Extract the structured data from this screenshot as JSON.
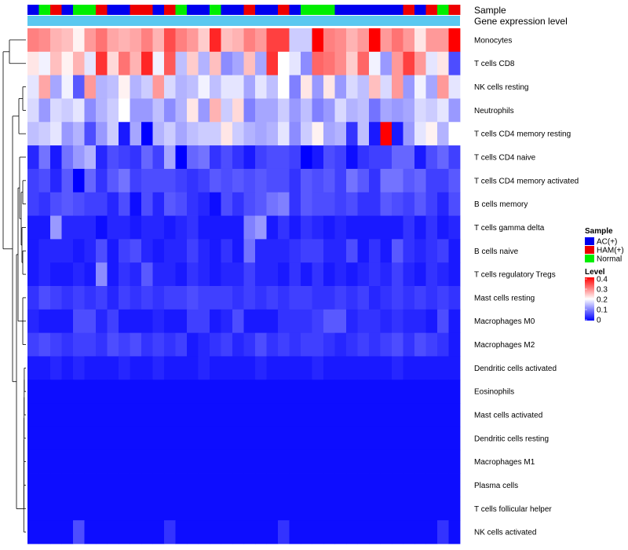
{
  "chart_data": {
    "type": "heatmap",
    "annotation_labels": {
      "sample": "Sample",
      "expression": "Gene expression level"
    },
    "row_labels": [
      "Monocytes",
      "T cells CD8",
      "NK cells resting",
      "Neutrophils",
      "T cells CD4 memory resting",
      "T cells CD4 naive",
      "T cells CD4 memory activated",
      "B cells memory",
      "T cells gamma delta",
      "B cells naive",
      "T cells regulatory  Tregs",
      "Mast cells resting",
      "Macrophages M0",
      "Macrophages M2",
      "Dendritic cells activated",
      "Eosinophils",
      "Mast cells activated",
      "Dendritic cells resting",
      "Macrophages M1",
      "Plasma cells",
      "T cells follicular helper",
      "NK cells activated"
    ],
    "sample_groups": [
      "AC(+)",
      "HAM(+)",
      "Normal"
    ],
    "sample_colors": {
      "AC(+)": "#0000ee",
      "HAM(+)": "#ee0000",
      "Normal": "#00ee00"
    },
    "column_samples": [
      "AC(+)",
      "Normal",
      "HAM(+)",
      "AC(+)",
      "Normal",
      "Normal",
      "HAM(+)",
      "AC(+)",
      "AC(+)",
      "HAM(+)",
      "HAM(+)",
      "AC(+)",
      "HAM(+)",
      "Normal",
      "AC(+)",
      "AC(+)",
      "Normal",
      "AC(+)",
      "AC(+)",
      "HAM(+)",
      "AC(+)",
      "AC(+)",
      "HAM(+)",
      "AC(+)",
      "Normal",
      "Normal",
      "Normal",
      "AC(+)",
      "AC(+)",
      "AC(+)",
      "AC(+)",
      "AC(+)",
      "AC(+)",
      "HAM(+)",
      "AC(+)",
      "HAM(+)",
      "Normal",
      "HAM(+)"
    ],
    "expression_bar_color": "#5bc8f0",
    "legend": {
      "sample_title": "Sample",
      "level_title": "Level",
      "level_ticks": [
        "0.4",
        "0.3",
        "0.2",
        "0.1",
        "0"
      ]
    },
    "color_scale": {
      "low": "#0000ff",
      "mid": "#ffffff",
      "high": "#ff0000",
      "min": 0,
      "mid_value": 0.2,
      "max": 0.4
    },
    "values": [
      [
        0.3,
        0.29,
        0.26,
        0.25,
        0.21,
        0.28,
        0.31,
        0.27,
        0.26,
        0.27,
        0.3,
        0.26,
        0.34,
        0.3,
        0.28,
        0.24,
        0.37,
        0.25,
        0.26,
        0.3,
        0.28,
        0.35,
        0.35,
        0.16,
        0.16,
        0.4,
        0.3,
        0.29,
        0.26,
        0.28,
        0.4,
        0.28,
        0.31,
        0.28,
        0.22,
        0.28,
        0.28,
        0.4
      ],
      [
        0.22,
        0.19,
        0.25,
        0.21,
        0.26,
        0.18,
        0.36,
        0.23,
        0.31,
        0.26,
        0.37,
        0.19,
        0.33,
        0.15,
        0.24,
        0.14,
        0.25,
        0.11,
        0.13,
        0.25,
        0.13,
        0.36,
        0.2,
        0.18,
        0.11,
        0.32,
        0.31,
        0.29,
        0.24,
        0.32,
        0.19,
        0.12,
        0.28,
        0.35,
        0.28,
        0.18,
        0.22,
        0.06
      ],
      [
        0.18,
        0.27,
        0.13,
        0.19,
        0.07,
        0.28,
        0.14,
        0.15,
        0.21,
        0.14,
        0.16,
        0.28,
        0.17,
        0.14,
        0.15,
        0.19,
        0.15,
        0.18,
        0.18,
        0.13,
        0.18,
        0.15,
        0.2,
        0.1,
        0.22,
        0.12,
        0.22,
        0.12,
        0.17,
        0.15,
        0.25,
        0.17,
        0.28,
        0.12,
        0.19,
        0.13,
        0.28,
        0.18
      ],
      [
        0.17,
        0.12,
        0.17,
        0.16,
        0.18,
        0.11,
        0.14,
        0.16,
        0.2,
        0.12,
        0.12,
        0.15,
        0.11,
        0.14,
        0.22,
        0.12,
        0.26,
        0.16,
        0.23,
        0.1,
        0.13,
        0.13,
        0.16,
        0.12,
        0.15,
        0.1,
        0.12,
        0.17,
        0.14,
        0.15,
        0.09,
        0.13,
        0.12,
        0.13,
        0.17,
        0.16,
        0.18,
        0.12
      ],
      [
        0.15,
        0.16,
        0.18,
        0.12,
        0.14,
        0.06,
        0.12,
        0.16,
        0.02,
        0.13,
        0.0,
        0.14,
        0.16,
        0.13,
        0.15,
        0.16,
        0.16,
        0.22,
        0.16,
        0.14,
        0.13,
        0.14,
        0.18,
        0.11,
        0.16,
        0.21,
        0.13,
        0.14,
        0.04,
        0.15,
        0.02,
        0.4,
        0.02,
        0.12,
        0.18,
        0.21,
        0.14,
        0.2
      ],
      [
        0.03,
        0.09,
        0.02,
        0.09,
        0.12,
        0.14,
        0.03,
        0.06,
        0.05,
        0.04,
        0.08,
        0.05,
        0.13,
        0.0,
        0.08,
        0.09,
        0.04,
        0.06,
        0.04,
        0.02,
        0.05,
        0.06,
        0.06,
        0.05,
        0.0,
        0.02,
        0.06,
        0.05,
        0.01,
        0.04,
        0.05,
        0.05,
        0.08,
        0.08,
        0.02,
        0.06,
        0.08,
        0.05
      ],
      [
        0.05,
        0.06,
        0.03,
        0.07,
        0.0,
        0.08,
        0.04,
        0.07,
        0.09,
        0.05,
        0.06,
        0.06,
        0.06,
        0.05,
        0.04,
        0.05,
        0.07,
        0.06,
        0.07,
        0.06,
        0.07,
        0.06,
        0.06,
        0.04,
        0.07,
        0.06,
        0.07,
        0.05,
        0.09,
        0.07,
        0.04,
        0.09,
        0.09,
        0.07,
        0.08,
        0.05,
        0.05,
        0.07
      ],
      [
        0.05,
        0.04,
        0.06,
        0.07,
        0.06,
        0.05,
        0.05,
        0.03,
        0.06,
        0.01,
        0.06,
        0.03,
        0.07,
        0.06,
        0.04,
        0.03,
        0.01,
        0.06,
        0.04,
        0.06,
        0.07,
        0.09,
        0.1,
        0.04,
        0.07,
        0.06,
        0.06,
        0.05,
        0.06,
        0.04,
        0.04,
        0.07,
        0.06,
        0.05,
        0.07,
        0.05,
        0.03,
        0.06
      ],
      [
        0.02,
        0.02,
        0.12,
        0.03,
        0.03,
        0.03,
        0.01,
        0.03,
        0.03,
        0.02,
        0.03,
        0.03,
        0.02,
        0.03,
        0.04,
        0.02,
        0.02,
        0.02,
        0.02,
        0.1,
        0.12,
        0.02,
        0.04,
        0.02,
        0.04,
        0.03,
        0.02,
        0.03,
        0.02,
        0.02,
        0.02,
        0.02,
        0.02,
        0.04,
        0.02,
        0.04,
        0.02,
        0.03
      ],
      [
        0.02,
        0.03,
        0.03,
        0.03,
        0.02,
        0.03,
        0.06,
        0.02,
        0.05,
        0.06,
        0.03,
        0.02,
        0.03,
        0.03,
        0.05,
        0.03,
        0.02,
        0.04,
        0.02,
        0.09,
        0.03,
        0.03,
        0.03,
        0.04,
        0.05,
        0.05,
        0.03,
        0.03,
        0.06,
        0.02,
        0.04,
        0.02,
        0.07,
        0.04,
        0.03,
        0.04,
        0.05,
        0.02
      ],
      [
        0.02,
        0.03,
        0.02,
        0.02,
        0.03,
        0.02,
        0.11,
        0.02,
        0.04,
        0.03,
        0.07,
        0.03,
        0.03,
        0.02,
        0.04,
        0.03,
        0.02,
        0.03,
        0.03,
        0.05,
        0.03,
        0.03,
        0.02,
        0.04,
        0.02,
        0.04,
        0.02,
        0.03,
        0.02,
        0.03,
        0.04,
        0.03,
        0.05,
        0.03,
        0.02,
        0.04,
        0.03,
        0.02
      ],
      [
        0.04,
        0.06,
        0.05,
        0.04,
        0.05,
        0.04,
        0.05,
        0.03,
        0.05,
        0.04,
        0.05,
        0.04,
        0.05,
        0.05,
        0.06,
        0.05,
        0.05,
        0.05,
        0.04,
        0.05,
        0.04,
        0.05,
        0.04,
        0.05,
        0.05,
        0.04,
        0.04,
        0.05,
        0.04,
        0.05,
        0.03,
        0.04,
        0.05,
        0.04,
        0.05,
        0.04,
        0.05,
        0.04
      ],
      [
        0.03,
        0.02,
        0.02,
        0.02,
        0.06,
        0.06,
        0.03,
        0.05,
        0.02,
        0.02,
        0.02,
        0.03,
        0.02,
        0.02,
        0.05,
        0.05,
        0.02,
        0.03,
        0.06,
        0.02,
        0.02,
        0.02,
        0.04,
        0.04,
        0.04,
        0.05,
        0.07,
        0.07,
        0.03,
        0.04,
        0.04,
        0.03,
        0.04,
        0.03,
        0.03,
        0.02,
        0.06,
        0.02
      ],
      [
        0.05,
        0.06,
        0.05,
        0.04,
        0.05,
        0.05,
        0.04,
        0.06,
        0.05,
        0.06,
        0.04,
        0.05,
        0.04,
        0.05,
        0.02,
        0.03,
        0.04,
        0.05,
        0.03,
        0.04,
        0.06,
        0.04,
        0.05,
        0.04,
        0.05,
        0.05,
        0.04,
        0.03,
        0.04,
        0.05,
        0.04,
        0.05,
        0.06,
        0.04,
        0.06,
        0.05,
        0.04,
        0.02
      ],
      [
        0.02,
        0.02,
        0.03,
        0.02,
        0.03,
        0.02,
        0.02,
        0.02,
        0.03,
        0.02,
        0.02,
        0.03,
        0.02,
        0.02,
        0.02,
        0.03,
        0.02,
        0.02,
        0.02,
        0.02,
        0.03,
        0.02,
        0.02,
        0.02,
        0.02,
        0.03,
        0.02,
        0.02,
        0.02,
        0.02,
        0.02,
        0.02,
        0.03,
        0.02,
        0.02,
        0.02,
        0.02,
        0.02
      ],
      [
        0.01,
        0.01,
        0.01,
        0.01,
        0.01,
        0.01,
        0.01,
        0.01,
        0.01,
        0.01,
        0.01,
        0.01,
        0.01,
        0.01,
        0.01,
        0.01,
        0.01,
        0.01,
        0.01,
        0.01,
        0.01,
        0.01,
        0.01,
        0.01,
        0.01,
        0.01,
        0.01,
        0.01,
        0.01,
        0.01,
        0.01,
        0.01,
        0.01,
        0.01,
        0.01,
        0.01,
        0.01,
        0.01
      ],
      [
        0.01,
        0.01,
        0.01,
        0.01,
        0.01,
        0.01,
        0.01,
        0.01,
        0.01,
        0.01,
        0.01,
        0.01,
        0.01,
        0.01,
        0.01,
        0.01,
        0.01,
        0.01,
        0.01,
        0.01,
        0.01,
        0.01,
        0.01,
        0.01,
        0.01,
        0.01,
        0.01,
        0.01,
        0.01,
        0.01,
        0.01,
        0.01,
        0.01,
        0.01,
        0.01,
        0.01,
        0.01,
        0.01
      ],
      [
        0.01,
        0.01,
        0.01,
        0.01,
        0.01,
        0.01,
        0.01,
        0.01,
        0.01,
        0.01,
        0.01,
        0.01,
        0.01,
        0.01,
        0.01,
        0.01,
        0.01,
        0.01,
        0.01,
        0.01,
        0.01,
        0.01,
        0.01,
        0.01,
        0.01,
        0.01,
        0.01,
        0.01,
        0.01,
        0.01,
        0.01,
        0.01,
        0.01,
        0.01,
        0.01,
        0.01,
        0.01,
        0.01
      ],
      [
        0.01,
        0.01,
        0.01,
        0.01,
        0.01,
        0.01,
        0.01,
        0.01,
        0.01,
        0.01,
        0.01,
        0.01,
        0.01,
        0.01,
        0.01,
        0.01,
        0.01,
        0.01,
        0.01,
        0.01,
        0.01,
        0.01,
        0.01,
        0.01,
        0.01,
        0.01,
        0.01,
        0.01,
        0.01,
        0.01,
        0.01,
        0.01,
        0.01,
        0.01,
        0.01,
        0.01,
        0.01,
        0.01
      ],
      [
        0.01,
        0.01,
        0.01,
        0.01,
        0.01,
        0.01,
        0.01,
        0.01,
        0.01,
        0.01,
        0.01,
        0.01,
        0.01,
        0.01,
        0.01,
        0.01,
        0.01,
        0.01,
        0.01,
        0.01,
        0.01,
        0.01,
        0.01,
        0.01,
        0.01,
        0.01,
        0.01,
        0.01,
        0.01,
        0.01,
        0.01,
        0.01,
        0.01,
        0.01,
        0.01,
        0.01,
        0.01,
        0.01
      ],
      [
        0.01,
        0.01,
        0.01,
        0.01,
        0.01,
        0.01,
        0.01,
        0.01,
        0.01,
        0.01,
        0.01,
        0.01,
        0.01,
        0.01,
        0.01,
        0.01,
        0.01,
        0.01,
        0.01,
        0.01,
        0.01,
        0.01,
        0.01,
        0.01,
        0.01,
        0.01,
        0.01,
        0.01,
        0.01,
        0.01,
        0.01,
        0.01,
        0.01,
        0.01,
        0.01,
        0.01,
        0.01,
        0.01
      ],
      [
        0.01,
        0.01,
        0.01,
        0.01,
        0.06,
        0.01,
        0.01,
        0.01,
        0.01,
        0.01,
        0.01,
        0.01,
        0.04,
        0.01,
        0.01,
        0.01,
        0.01,
        0.01,
        0.01,
        0.01,
        0.01,
        0.01,
        0.04,
        0.01,
        0.01,
        0.01,
        0.01,
        0.01,
        0.01,
        0.01,
        0.01,
        0.01,
        0.01,
        0.01,
        0.01,
        0.01,
        0.04,
        0.01
      ]
    ]
  }
}
